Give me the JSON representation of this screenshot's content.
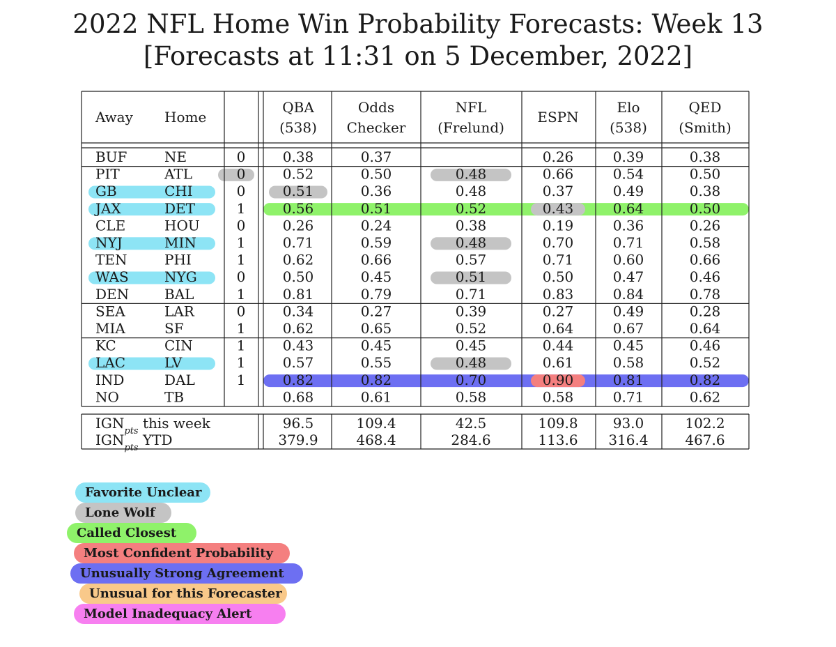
{
  "title_line1": "2022 NFL Home Win Probability Forecasts: Week 13",
  "title_line2": "[Forecasts at 11:31 on 5 December, 2022]",
  "colors": {
    "favorite_unclear": "#8de4f5",
    "lone_wolf": "#c4c4c4",
    "called_closest": "#8ff26a",
    "most_confident": "#f47f7f",
    "strong_agreement": "#6d6ff2",
    "unusual_forecaster": "#f9c98a",
    "model_inadequacy": "#f77ff0"
  },
  "chart_data": {
    "type": "table",
    "headers": {
      "away": "Away",
      "home": "Home",
      "models": [
        {
          "line1": "QBA",
          "line2": "(538)"
        },
        {
          "line1": "Odds",
          "line2": "Checker"
        },
        {
          "line1": "NFL",
          "line2": "(Frelund)"
        },
        {
          "line1": "ESPN",
          "line2": ""
        },
        {
          "line1": "Elo",
          "line2": "(538)"
        },
        {
          "line1": "QED",
          "line2": "(Smith)"
        }
      ]
    },
    "games": [
      {
        "away": "BUF",
        "home": "NE",
        "result": "0",
        "p": [
          "0.38",
          "0.37",
          "",
          "0.26",
          "0.39",
          "0.38"
        ],
        "hl": {}
      },
      {
        "away": "PIT",
        "home": "ATL",
        "result": "0",
        "p": [
          "0.52",
          "0.50",
          "0.48",
          "0.66",
          "0.54",
          "0.50"
        ],
        "hl": {
          "result": "lone_wolf",
          "cells": {
            "2": "lone_wolf"
          }
        }
      },
      {
        "away": "GB",
        "home": "CHI",
        "result": "0",
        "p": [
          "0.51",
          "0.36",
          "0.48",
          "0.37",
          "0.49",
          "0.38"
        ],
        "hl": {
          "teams": "favorite_unclear",
          "cells": {
            "0": "lone_wolf"
          }
        }
      },
      {
        "away": "JAX",
        "home": "DET",
        "result": "1",
        "p": [
          "0.56",
          "0.51",
          "0.52",
          "0.43",
          "0.64",
          "0.50"
        ],
        "hl": {
          "teams": "favorite_unclear",
          "row": "called_closest",
          "cells": {
            "3": "lone_wolf"
          }
        }
      },
      {
        "away": "CLE",
        "home": "HOU",
        "result": "0",
        "p": [
          "0.26",
          "0.24",
          "0.38",
          "0.19",
          "0.36",
          "0.26"
        ],
        "hl": {}
      },
      {
        "away": "NYJ",
        "home": "MIN",
        "result": "1",
        "p": [
          "0.71",
          "0.59",
          "0.48",
          "0.70",
          "0.71",
          "0.58"
        ],
        "hl": {
          "teams": "favorite_unclear",
          "cells": {
            "2": "lone_wolf"
          }
        }
      },
      {
        "away": "TEN",
        "home": "PHI",
        "result": "1",
        "p": [
          "0.62",
          "0.66",
          "0.57",
          "0.71",
          "0.60",
          "0.66"
        ],
        "hl": {}
      },
      {
        "away": "WAS",
        "home": "NYG",
        "result": "0",
        "p": [
          "0.50",
          "0.45",
          "0.51",
          "0.50",
          "0.47",
          "0.46"
        ],
        "hl": {
          "teams": "favorite_unclear",
          "cells": {
            "2": "lone_wolf"
          }
        }
      },
      {
        "away": "DEN",
        "home": "BAL",
        "result": "1",
        "p": [
          "0.81",
          "0.79",
          "0.71",
          "0.83",
          "0.84",
          "0.78"
        ],
        "hl": {}
      },
      {
        "away": "SEA",
        "home": "LAR",
        "result": "0",
        "p": [
          "0.34",
          "0.27",
          "0.39",
          "0.27",
          "0.49",
          "0.28"
        ],
        "hl": {}
      },
      {
        "away": "MIA",
        "home": "SF",
        "result": "1",
        "p": [
          "0.62",
          "0.65",
          "0.52",
          "0.64",
          "0.67",
          "0.64"
        ],
        "hl": {}
      },
      {
        "away": "KC",
        "home": "CIN",
        "result": "1",
        "p": [
          "0.43",
          "0.45",
          "0.45",
          "0.44",
          "0.45",
          "0.46"
        ],
        "hl": {}
      },
      {
        "away": "LAC",
        "home": "LV",
        "result": "1",
        "p": [
          "0.57",
          "0.55",
          "0.48",
          "0.61",
          "0.58",
          "0.52"
        ],
        "hl": {
          "teams": "favorite_unclear",
          "cells": {
            "2": "lone_wolf"
          }
        }
      },
      {
        "away": "IND",
        "home": "DAL",
        "result": "1",
        "p": [
          "0.82",
          "0.82",
          "0.70",
          "0.90",
          "0.81",
          "0.82"
        ],
        "hl": {
          "row": "strong_agreement",
          "cells": {
            "3": "most_confident"
          }
        }
      },
      {
        "away": "NO",
        "home": "TB",
        "result": "",
        "p": [
          "0.68",
          "0.61",
          "0.58",
          "0.58",
          "0.71",
          "0.62"
        ],
        "hl": {}
      }
    ],
    "group_separators_after": [
      0,
      8,
      10,
      14
    ],
    "summary": [
      {
        "label_main": "IGN",
        "label_sub": "pts",
        "label_rest": " this week",
        "values": [
          "96.5",
          "109.4",
          "42.5",
          "109.8",
          "93.0",
          "102.2"
        ]
      },
      {
        "label_main": "IGN",
        "label_sub": "pts",
        "label_rest": " YTD",
        "values": [
          "379.9",
          "468.4",
          "284.6",
          "113.6",
          "316.4",
          "467.6"
        ]
      }
    ]
  },
  "legend": [
    {
      "key": "favorite_unclear",
      "label": "Favorite Unclear"
    },
    {
      "key": "lone_wolf",
      "label": "Lone Wolf"
    },
    {
      "key": "called_closest",
      "label": "Called Closest"
    },
    {
      "key": "most_confident",
      "label": "Most Confident Probability"
    },
    {
      "key": "strong_agreement",
      "label": "Unusually Strong Agreement"
    },
    {
      "key": "unusual_forecaster",
      "label": "Unusual for this Forecaster"
    },
    {
      "key": "model_inadequacy",
      "label": "Model Inadequacy Alert"
    }
  ]
}
